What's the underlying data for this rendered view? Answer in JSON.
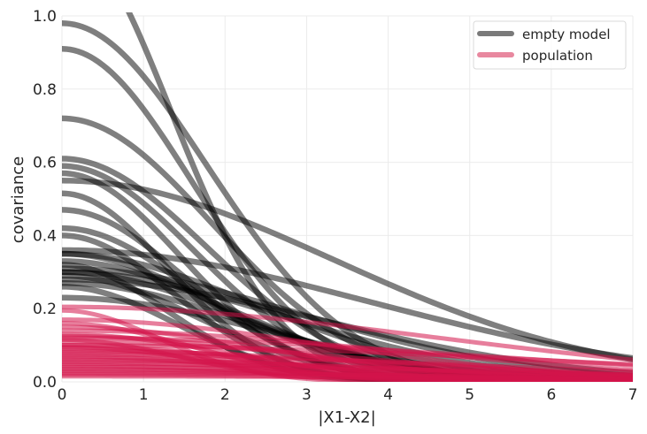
{
  "chart_data": {
    "type": "line",
    "title": "",
    "xlabel": "|X1-X2|",
    "ylabel": "covariance",
    "xlim": [
      0,
      7
    ],
    "ylim": [
      0,
      1.0
    ],
    "xticks": [
      0,
      1,
      2,
      3,
      4,
      5,
      6,
      7
    ],
    "xtick_labels": [
      "0",
      "1",
      "2",
      "3",
      "4",
      "5",
      "6",
      "7"
    ],
    "yticks": [
      0.0,
      0.2,
      0.4,
      0.6,
      0.8,
      1.0
    ],
    "ytick_labels": [
      "0.0",
      "0.2",
      "0.4",
      "0.6",
      "0.8",
      "1.0"
    ],
    "grid": true,
    "legend_position": "top-right",
    "legend": [
      {
        "label": "empty model",
        "color": "#7a7a7a"
      },
      {
        "label": "population",
        "color": "#e8889f"
      }
    ],
    "colors": {
      "empty_model": "#000000",
      "population": "#d3144a"
    },
    "series": [
      {
        "name": "empty model",
        "curve_type": "gaussian_kernel_samples",
        "curves": [
          {
            "eta_sq": 1.22,
            "rho_sq": 0.28
          },
          {
            "eta_sq": 0.98,
            "rho_sq": 0.16
          },
          {
            "eta_sq": 0.91,
            "rho_sq": 0.2
          },
          {
            "eta_sq": 0.72,
            "rho_sq": 0.15
          },
          {
            "eta_sq": 0.61,
            "rho_sq": 0.16
          },
          {
            "eta_sq": 0.59,
            "rho_sq": 0.19
          },
          {
            "eta_sq": 0.57,
            "rho_sq": 0.24
          },
          {
            "eta_sq": 0.55,
            "rho_sq": 0.045
          },
          {
            "eta_sq": 0.515,
            "rho_sq": 0.3
          },
          {
            "eta_sq": 0.47,
            "rho_sq": 0.22
          },
          {
            "eta_sq": 0.42,
            "rho_sq": 0.2
          },
          {
            "eta_sq": 0.4,
            "rho_sq": 0.27
          },
          {
            "eta_sq": 0.36,
            "rho_sq": 0.035
          },
          {
            "eta_sq": 0.35,
            "rho_sq": 0.09
          },
          {
            "eta_sq": 0.33,
            "rho_sq": 0.12
          },
          {
            "eta_sq": 0.32,
            "rho_sq": 0.3
          },
          {
            "eta_sq": 0.31,
            "rho_sq": 0.06
          },
          {
            "eta_sq": 0.3,
            "rho_sq": 0.07
          },
          {
            "eta_sq": 0.29,
            "rho_sq": 0.18
          },
          {
            "eta_sq": 0.28,
            "rho_sq": 0.05
          },
          {
            "eta_sq": 0.27,
            "rho_sq": 0.1
          },
          {
            "eta_sq": 0.26,
            "rho_sq": 0.25
          },
          {
            "eta_sq": 0.23,
            "rho_sq": 0.08
          },
          {
            "eta_sq": 0.35,
            "rho_sq": 0.14
          },
          {
            "eta_sq": 0.3,
            "rho_sq": 0.11
          }
        ]
      },
      {
        "name": "population",
        "curve_type": "gaussian_kernel_samples",
        "curves": [
          {
            "eta_sq": 0.205,
            "rho_sq": 0.025
          },
          {
            "eta_sq": 0.195,
            "rho_sq": 0.35
          },
          {
            "eta_sq": 0.17,
            "rho_sq": 0.05
          },
          {
            "eta_sq": 0.16,
            "rho_sq": 0.2
          },
          {
            "eta_sq": 0.15,
            "rho_sq": 0.08
          },
          {
            "eta_sq": 0.14,
            "rho_sq": 0.03
          },
          {
            "eta_sq": 0.13,
            "rho_sq": 0.12
          },
          {
            "eta_sq": 0.125,
            "rho_sq": 0.06
          },
          {
            "eta_sq": 0.12,
            "rho_sq": 0.02
          },
          {
            "eta_sq": 0.115,
            "rho_sq": 0.25
          },
          {
            "eta_sq": 0.11,
            "rho_sq": 0.04
          },
          {
            "eta_sq": 0.1,
            "rho_sq": 0.09
          },
          {
            "eta_sq": 0.1,
            "rho_sq": 0.015
          },
          {
            "eta_sq": 0.095,
            "rho_sq": 0.15
          },
          {
            "eta_sq": 0.09,
            "rho_sq": 0.05
          },
          {
            "eta_sq": 0.085,
            "rho_sq": 0.03
          },
          {
            "eta_sq": 0.08,
            "rho_sq": 0.07
          },
          {
            "eta_sq": 0.075,
            "rho_sq": 0.02
          },
          {
            "eta_sq": 0.07,
            "rho_sq": 0.1
          },
          {
            "eta_sq": 0.065,
            "rho_sq": 0.04
          },
          {
            "eta_sq": 0.06,
            "rho_sq": 0.03
          },
          {
            "eta_sq": 0.055,
            "rho_sq": 0.06
          },
          {
            "eta_sq": 0.05,
            "rho_sq": 0.02
          },
          {
            "eta_sq": 0.045,
            "rho_sq": 0.08
          },
          {
            "eta_sq": 0.04,
            "rho_sq": 0.015
          },
          {
            "eta_sq": 0.035,
            "rho_sq": 0.05
          },
          {
            "eta_sq": 0.03,
            "rho_sq": 0.03
          },
          {
            "eta_sq": 0.025,
            "rho_sq": 0.02
          },
          {
            "eta_sq": 0.02,
            "rho_sq": 0.04
          },
          {
            "eta_sq": 0.015,
            "rho_sq": 0.01
          }
        ]
      }
    ]
  }
}
